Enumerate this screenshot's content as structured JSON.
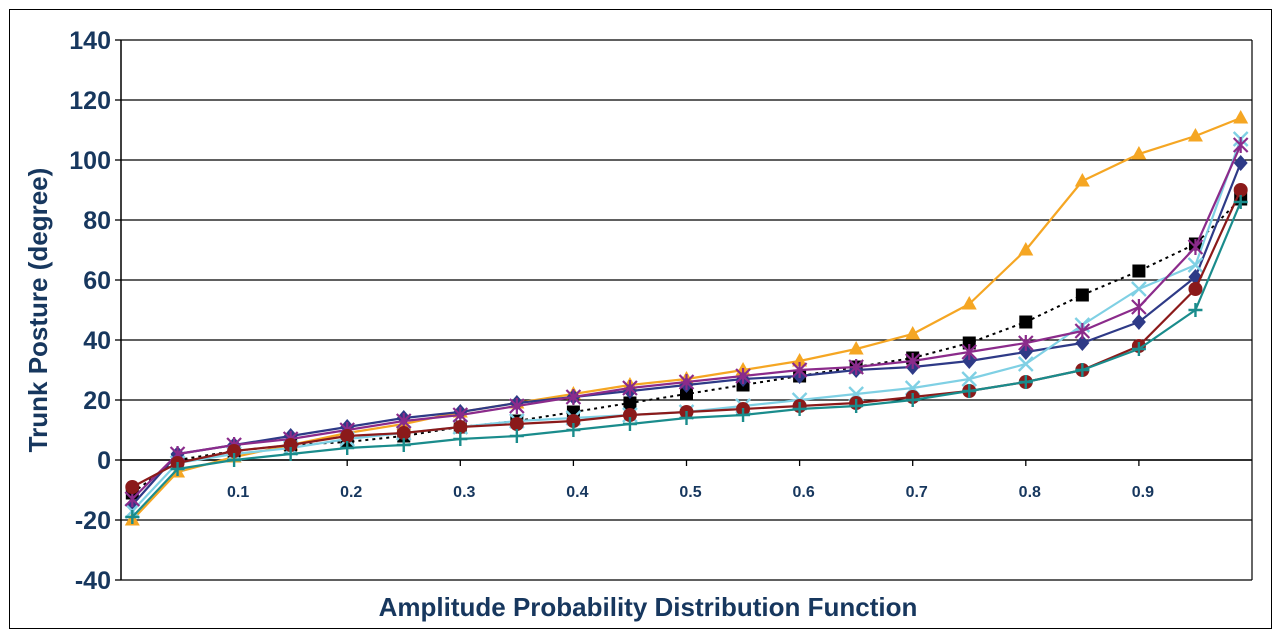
{
  "chart_data": {
    "type": "line",
    "title": "",
    "xlabel": "Amplitude Probability Distribution Function",
    "ylabel": "Trunk Posture (degree)",
    "ylim": [
      -40,
      140
    ],
    "yticks": [
      -40,
      -20,
      0,
      20,
      40,
      60,
      80,
      100,
      120,
      140
    ],
    "xlim": [
      0,
      1
    ],
    "xticks": [
      0.1,
      0.2,
      0.3,
      0.4,
      0.5,
      0.6,
      0.7,
      0.8,
      0.9
    ],
    "xtick_labels": [
      "0.1",
      "0.2",
      "0.3",
      "0.4",
      "0.5",
      "0.6",
      "0.7",
      "0.8",
      "0.9"
    ],
    "grid": "horizontal",
    "legend": "none",
    "x": [
      0.01,
      0.05,
      0.1,
      0.15,
      0.2,
      0.25,
      0.3,
      0.35,
      0.4,
      0.45,
      0.5,
      0.55,
      0.6,
      0.65,
      0.7,
      0.75,
      0.8,
      0.85,
      0.9,
      0.95,
      0.99
    ],
    "series": [
      {
        "color": "#f5a623",
        "marker": "triangle",
        "dash": "solid",
        "values": [
          -20,
          -4,
          1,
          5,
          9,
          12,
          16,
          19,
          22,
          25,
          27,
          30,
          33,
          37,
          42,
          52,
          70,
          93,
          102,
          108,
          114
        ]
      },
      {
        "color": "#000000",
        "marker": "square",
        "dash": "dotted",
        "values": [
          -11,
          0,
          3,
          5,
          6,
          8,
          11,
          13,
          16,
          19,
          22,
          25,
          28,
          31,
          34,
          39,
          46,
          55,
          63,
          72,
          87
        ]
      },
      {
        "color": "#2e3a87",
        "marker": "diamond",
        "dash": "solid",
        "values": [
          -15,
          2,
          5,
          8,
          11,
          14,
          16,
          19,
          21,
          23,
          25,
          27,
          28,
          30,
          31,
          33,
          36,
          39,
          46,
          61,
          99
        ]
      },
      {
        "color": "#7fd0e4",
        "marker": "x",
        "dash": "solid",
        "values": [
          -17,
          -1,
          2,
          4,
          7,
          9,
          11,
          13,
          14,
          15,
          16,
          18,
          20,
          22,
          24,
          27,
          32,
          45,
          57,
          65,
          107
        ]
      },
      {
        "color": "#8b2b8b",
        "marker": "star",
        "dash": "solid",
        "values": [
          -13,
          2,
          5,
          7,
          10,
          13,
          15,
          18,
          21,
          24,
          26,
          28,
          30,
          31,
          33,
          36,
          39,
          43,
          51,
          71,
          105
        ]
      },
      {
        "color": "#8b1a1a",
        "marker": "circle",
        "dash": "solid",
        "values": [
          -9,
          -1,
          3,
          5,
          8,
          9,
          11,
          12,
          13,
          15,
          16,
          17,
          18,
          19,
          21,
          23,
          26,
          30,
          38,
          57,
          90
        ]
      },
      {
        "color": "#1a8c8c",
        "marker": "plus",
        "dash": "solid",
        "values": [
          -19,
          -3,
          0,
          2,
          4,
          5,
          7,
          8,
          10,
          12,
          14,
          15,
          17,
          18,
          20,
          23,
          26,
          30,
          37,
          50,
          86
        ]
      }
    ]
  }
}
